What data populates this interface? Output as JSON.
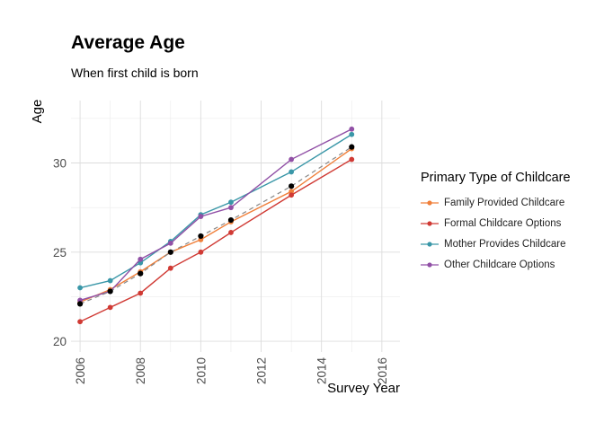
{
  "chart_data": {
    "type": "line",
    "title": "Average Age",
    "subtitle": "When first child is born",
    "xlabel": "Survey Year",
    "ylabel": "Age",
    "xlim": [
      2005.7,
      2016.6
    ],
    "ylim": [
      19.4,
      33.5
    ],
    "xticks": [
      2006,
      2008,
      2010,
      2012,
      2014,
      2016
    ],
    "yticks": [
      20,
      25,
      30
    ],
    "grid": true,
    "legend_title": "Primary Type of Childcare",
    "legend_position": "right",
    "series": [
      {
        "name": "Family Provided Childcare",
        "color": "#F07F3A",
        "x": [
          2006,
          2007,
          2008,
          2009,
          2010,
          2011,
          2013,
          2015
        ],
        "y": [
          22.2,
          22.9,
          23.9,
          25.0,
          25.7,
          26.7,
          28.4,
          30.8
        ]
      },
      {
        "name": "Formal Childcare Options",
        "color": "#D03A34",
        "x": [
          2006,
          2007,
          2008,
          2009,
          2010,
          2011,
          2013,
          2015
        ],
        "y": [
          21.1,
          21.9,
          22.7,
          24.1,
          25.0,
          26.1,
          28.2,
          30.2
        ]
      },
      {
        "name": "Mother Provides Childcare",
        "color": "#3A97A8",
        "x": [
          2006,
          2007,
          2008,
          2009,
          2010,
          2011,
          2013,
          2015
        ],
        "y": [
          23.0,
          23.4,
          24.4,
          25.6,
          27.1,
          27.8,
          29.5,
          31.6
        ]
      },
      {
        "name": "Other Childcare Options",
        "color": "#9150A6",
        "x": [
          2006,
          2007,
          2008,
          2009,
          2010,
          2011,
          2013,
          2015
        ],
        "y": [
          22.3,
          22.8,
          24.6,
          25.5,
          27.0,
          27.5,
          30.2,
          31.9
        ]
      }
    ],
    "overall": {
      "color": "#000000",
      "line_color": "#888888",
      "dashed": true,
      "x": [
        2006,
        2007,
        2008,
        2009,
        2010,
        2011,
        2013,
        2015
      ],
      "y": [
        22.1,
        22.8,
        23.8,
        25.0,
        25.9,
        26.8,
        28.7,
        30.9
      ]
    }
  }
}
